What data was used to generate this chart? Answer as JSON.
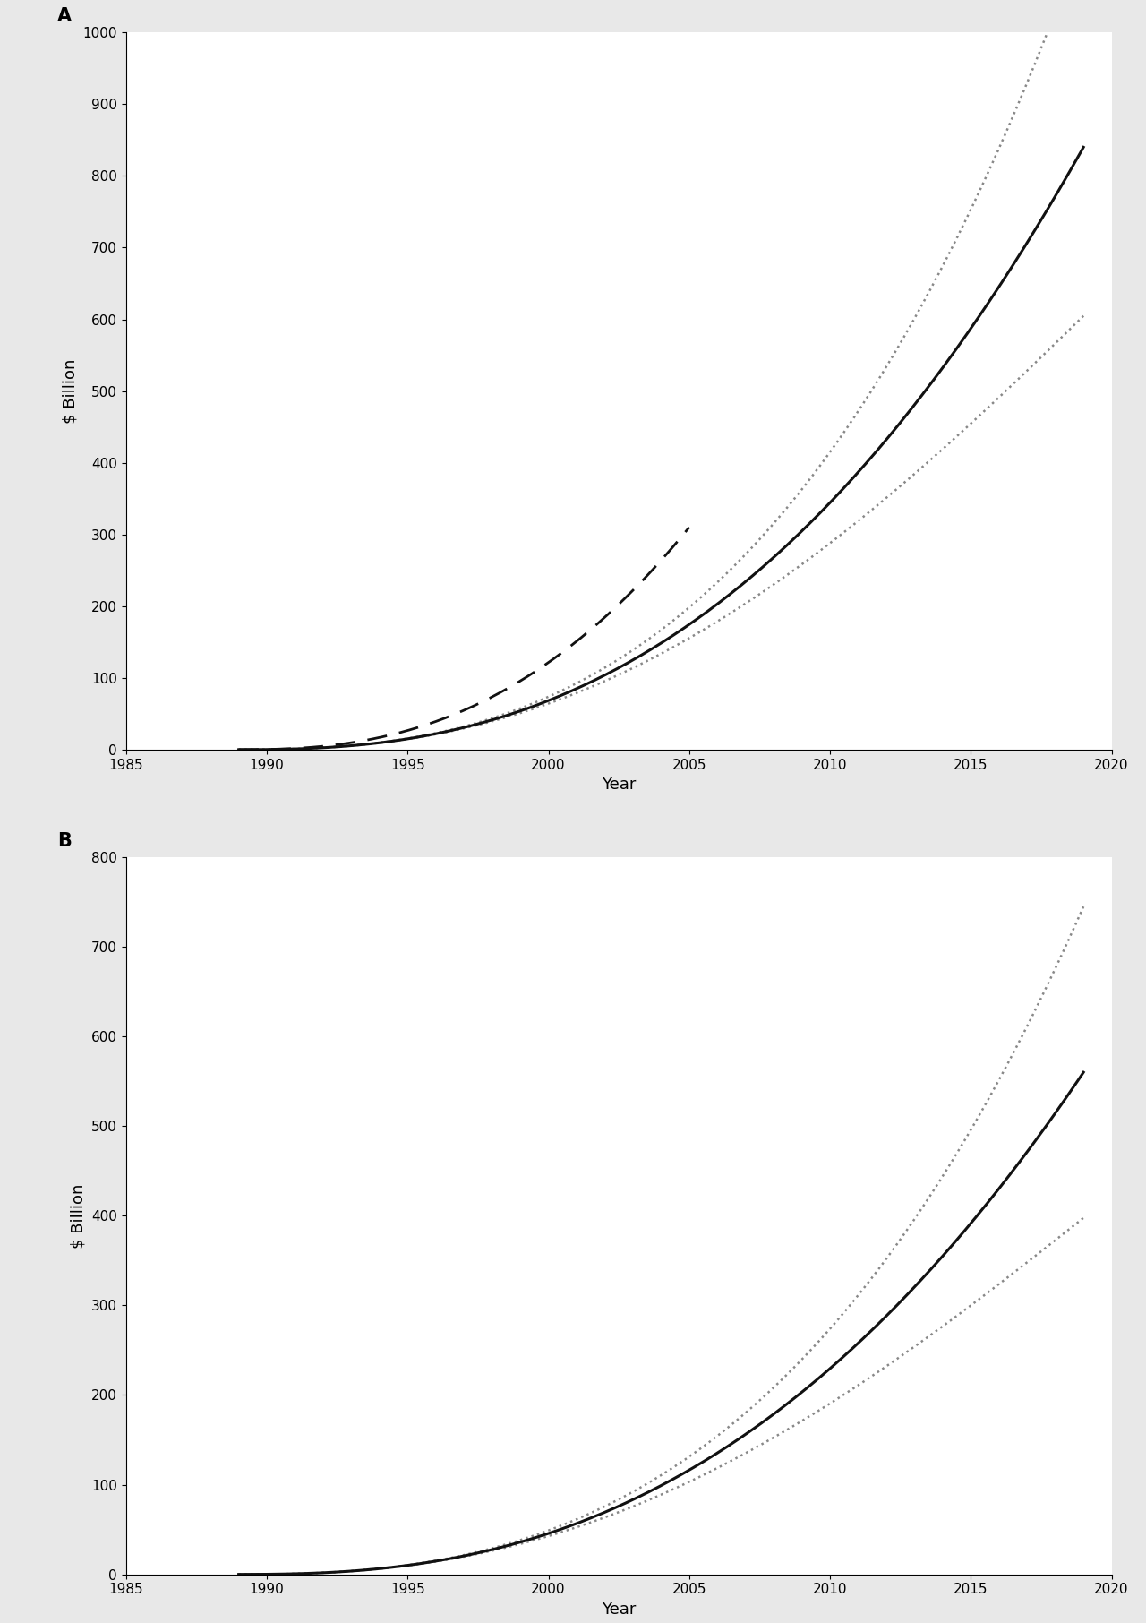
{
  "panel_A": {
    "label": "A",
    "ylabel": "$ Billion",
    "xlabel": "Year",
    "xlim": [
      1985,
      2020
    ],
    "ylim": [
      0,
      1000
    ],
    "yticks": [
      0,
      100,
      200,
      300,
      400,
      500,
      600,
      700,
      800,
      900,
      1000
    ],
    "xticks": [
      1985,
      1990,
      1995,
      2000,
      2005,
      2010,
      2015,
      2020
    ]
  },
  "panel_B": {
    "label": "B",
    "ylabel": "$ Billion",
    "xlabel": "Year",
    "xlim": [
      1985,
      2020
    ],
    "ylim": [
      0,
      800
    ],
    "yticks": [
      0,
      100,
      200,
      300,
      400,
      500,
      600,
      700,
      800
    ],
    "xticks": [
      1985,
      1990,
      1995,
      2000,
      2005,
      2010,
      2015,
      2020
    ]
  },
  "line_color": "#111111",
  "dotted_color": "#888888",
  "background_color": "#e8e8e8",
  "panel_bg": "#ffffff",
  "fontsize_label": 13,
  "fontsize_tick": 11,
  "fontsize_panel_label": 15
}
